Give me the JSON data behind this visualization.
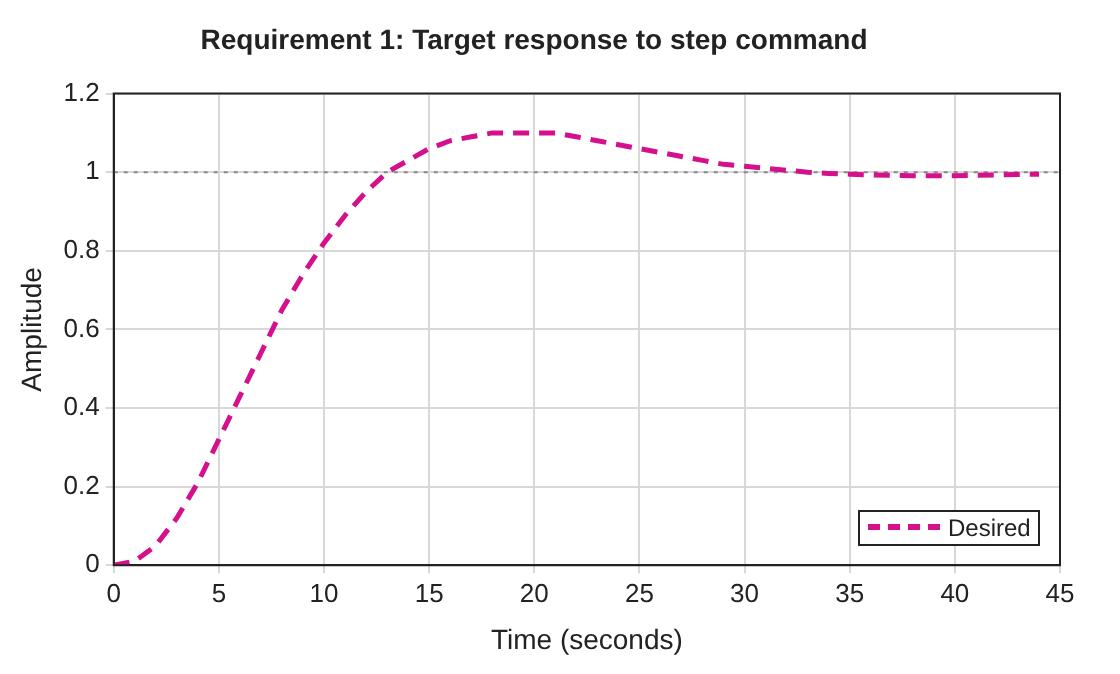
{
  "chart_data": {
    "type": "line",
    "title": "Requirement 1: Target response to step command",
    "xlabel": "Time (seconds)",
    "ylabel": "Amplitude",
    "x": [
      0,
      1,
      2,
      3,
      4,
      5,
      6,
      7,
      8,
      9,
      10,
      11,
      12,
      13,
      14,
      15,
      16,
      17,
      18,
      19,
      20,
      21,
      22,
      23,
      24,
      25,
      26,
      27,
      28,
      29,
      30,
      31,
      32,
      33,
      34,
      35,
      36,
      37,
      38,
      39,
      40,
      41,
      42,
      43,
      44
    ],
    "series": [
      {
        "name": "Desired",
        "color": "#d4108c",
        "values": [
          0,
          0.01,
          0.05,
          0.12,
          0.21,
          0.32,
          0.43,
          0.54,
          0.65,
          0.74,
          0.82,
          0.89,
          0.95,
          1.0,
          1.03,
          1.06,
          1.08,
          1.09,
          1.1,
          1.1,
          1.1,
          1.1,
          1.09,
          1.08,
          1.07,
          1.06,
          1.05,
          1.04,
          1.03,
          1.02,
          1.015,
          1.01,
          1.005,
          1.0,
          0.997,
          0.995,
          0.993,
          0.992,
          0.991,
          0.991,
          0.991,
          0.992,
          0.993,
          0.994,
          0.995
        ]
      }
    ],
    "xlim": [
      0,
      45
    ],
    "xticks": [
      0,
      5,
      10,
      15,
      20,
      25,
      30,
      35,
      40,
      45
    ],
    "ylim": [
      0,
      1.2
    ],
    "yticks": [
      0,
      0.2,
      0.4,
      0.6,
      0.8,
      1,
      1.2
    ],
    "ref_lines": [
      {
        "axis": "y",
        "value": 1,
        "color": "#888888",
        "line_style": "dotted"
      }
    ],
    "grid": true,
    "legend": "bottom right",
    "marker": "none",
    "line_style": "dashed"
  }
}
